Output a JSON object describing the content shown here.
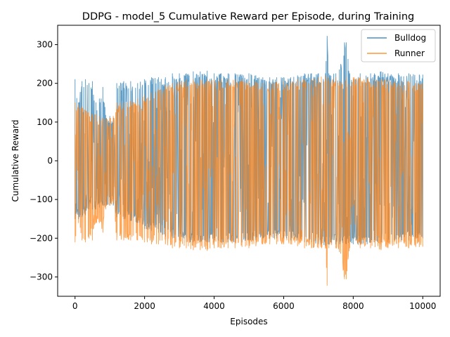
{
  "chart_data": {
    "type": "line",
    "title": "DDPG - model_5 Cumulative Reward per Episode, during Training",
    "xlabel": "Episodes",
    "ylabel": "Cumulative Reward",
    "xlim": [
      -500,
      10500
    ],
    "ylim": [
      -350,
      350
    ],
    "xticks": [
      0,
      2000,
      4000,
      6000,
      8000,
      10000
    ],
    "xtick_labels": [
      "0",
      "2000",
      "4000",
      "6000",
      "8000",
      "10000"
    ],
    "yticks": [
      -300,
      -200,
      -100,
      0,
      100,
      200,
      300
    ],
    "ytick_labels": [
      "−300",
      "−200",
      "−100",
      "0",
      "100",
      "200",
      "300"
    ],
    "grid": false,
    "legend_position": "top-right",
    "x_range": [
      0,
      10000
    ],
    "series": [
      {
        "name": "Bulldog",
        "color": "#1f77b4",
        "alpha": 0.7,
        "upper_envelope": [
          [
            0,
            210
          ],
          [
            100,
            150
          ],
          [
            200,
            205
          ],
          [
            300,
            210
          ],
          [
            400,
            200
          ],
          [
            500,
            205
          ],
          [
            600,
            150
          ],
          [
            700,
            160
          ],
          [
            800,
            190
          ],
          [
            900,
            110
          ],
          [
            1000,
            115
          ],
          [
            1100,
            110
          ],
          [
            1200,
            200
          ],
          [
            1400,
            205
          ],
          [
            1600,
            205
          ],
          [
            1800,
            200
          ],
          [
            2000,
            210
          ],
          [
            2200,
            215
          ],
          [
            2400,
            215
          ],
          [
            2600,
            215
          ],
          [
            2800,
            225
          ],
          [
            3000,
            225
          ],
          [
            3200,
            225
          ],
          [
            3400,
            230
          ],
          [
            3600,
            230
          ],
          [
            3800,
            232
          ],
          [
            4000,
            225
          ],
          [
            4200,
            225
          ],
          [
            4400,
            225
          ],
          [
            4600,
            225
          ],
          [
            4800,
            222
          ],
          [
            5000,
            225
          ],
          [
            5200,
            220
          ],
          [
            5400,
            215
          ],
          [
            5600,
            215
          ],
          [
            5800,
            215
          ],
          [
            6000,
            215
          ],
          [
            6200,
            215
          ],
          [
            6400,
            220
          ],
          [
            6600,
            225
          ],
          [
            6800,
            225
          ],
          [
            7000,
            225
          ],
          [
            7200,
            225
          ],
          [
            7250,
            322
          ],
          [
            7300,
            225
          ],
          [
            7500,
            225
          ],
          [
            7600,
            235
          ],
          [
            7750,
            305
          ],
          [
            7800,
            305
          ],
          [
            7900,
            225
          ],
          [
            8200,
            225
          ],
          [
            8500,
            225
          ],
          [
            8800,
            230
          ],
          [
            9000,
            225
          ],
          [
            9300,
            225
          ],
          [
            9600,
            225
          ],
          [
            9900,
            222
          ],
          [
            10000,
            222
          ]
        ],
        "lower_envelope": [
          [
            0,
            -150
          ],
          [
            100,
            -150
          ],
          [
            200,
            -145
          ],
          [
            300,
            -140
          ],
          [
            400,
            -125
          ],
          [
            500,
            -125
          ],
          [
            600,
            -125
          ],
          [
            700,
            -120
          ],
          [
            800,
            -115
          ],
          [
            900,
            -115
          ],
          [
            1000,
            -115
          ],
          [
            1100,
            -115
          ],
          [
            1200,
            -145
          ],
          [
            1400,
            -150
          ],
          [
            1600,
            -155
          ],
          [
            1800,
            -160
          ],
          [
            2000,
            -175
          ],
          [
            2200,
            -180
          ],
          [
            2400,
            -185
          ],
          [
            2600,
            -195
          ],
          [
            2800,
            -200
          ],
          [
            3000,
            -205
          ],
          [
            3200,
            -210
          ],
          [
            3400,
            -210
          ],
          [
            3600,
            -210
          ],
          [
            3800,
            -210
          ],
          [
            4000,
            -210
          ],
          [
            4200,
            -210
          ],
          [
            4400,
            -210
          ],
          [
            4600,
            -210
          ],
          [
            4800,
            -210
          ],
          [
            5000,
            -205
          ],
          [
            5200,
            -205
          ],
          [
            5400,
            -200
          ],
          [
            5600,
            -200
          ],
          [
            5800,
            -200
          ],
          [
            6000,
            -200
          ],
          [
            6200,
            -205
          ],
          [
            6400,
            -205
          ],
          [
            6600,
            -210
          ],
          [
            6800,
            -210
          ],
          [
            7000,
            -215
          ],
          [
            7200,
            -220
          ],
          [
            7500,
            -215
          ],
          [
            7800,
            -215
          ],
          [
            8000,
            -215
          ],
          [
            8200,
            -215
          ],
          [
            8400,
            -215
          ],
          [
            8600,
            -210
          ],
          [
            8800,
            -210
          ],
          [
            9000,
            -210
          ],
          [
            9200,
            -205
          ],
          [
            9400,
            -205
          ],
          [
            9600,
            -205
          ],
          [
            9800,
            -200
          ],
          [
            10000,
            -200
          ]
        ]
      },
      {
        "name": "Runner",
        "color": "#ff7f0e",
        "alpha": 0.7,
        "upper_envelope": [
          [
            0,
            150
          ],
          [
            100,
            145
          ],
          [
            200,
            140
          ],
          [
            300,
            130
          ],
          [
            400,
            125
          ],
          [
            500,
            120
          ],
          [
            600,
            120
          ],
          [
            700,
            115
          ],
          [
            800,
            110
          ],
          [
            900,
            110
          ],
          [
            1000,
            110
          ],
          [
            1100,
            115
          ],
          [
            1200,
            150
          ],
          [
            1400,
            150
          ],
          [
            1600,
            155
          ],
          [
            1800,
            160
          ],
          [
            2000,
            170
          ],
          [
            2200,
            175
          ],
          [
            2400,
            185
          ],
          [
            2600,
            195
          ],
          [
            2800,
            200
          ],
          [
            3000,
            205
          ],
          [
            3200,
            210
          ],
          [
            3400,
            210
          ],
          [
            3600,
            210
          ],
          [
            3800,
            210
          ],
          [
            4000,
            210
          ],
          [
            4200,
            210
          ],
          [
            4400,
            210
          ],
          [
            4600,
            210
          ],
          [
            4800,
            210
          ],
          [
            5000,
            205
          ],
          [
            5200,
            205
          ],
          [
            5400,
            200
          ],
          [
            5600,
            200
          ],
          [
            5800,
            205
          ],
          [
            6000,
            205
          ],
          [
            6200,
            205
          ],
          [
            6400,
            210
          ],
          [
            6600,
            210
          ],
          [
            6800,
            210
          ],
          [
            7000,
            215
          ],
          [
            7200,
            220
          ],
          [
            7500,
            215
          ],
          [
            7800,
            215
          ],
          [
            8000,
            215
          ],
          [
            8200,
            215
          ],
          [
            8400,
            215
          ],
          [
            8600,
            210
          ],
          [
            8800,
            210
          ],
          [
            9000,
            210
          ],
          [
            9200,
            205
          ],
          [
            9400,
            205
          ],
          [
            9600,
            205
          ],
          [
            9800,
            200
          ],
          [
            10000,
            200
          ]
        ],
        "lower_envelope": [
          [
            0,
            -210
          ],
          [
            100,
            -160
          ],
          [
            200,
            -205
          ],
          [
            300,
            -210
          ],
          [
            400,
            -200
          ],
          [
            500,
            -205
          ],
          [
            600,
            -160
          ],
          [
            700,
            -160
          ],
          [
            800,
            -185
          ],
          [
            900,
            -115
          ],
          [
            1000,
            -115
          ],
          [
            1100,
            -110
          ],
          [
            1200,
            -205
          ],
          [
            1400,
            -205
          ],
          [
            1600,
            -205
          ],
          [
            1800,
            -205
          ],
          [
            2000,
            -210
          ],
          [
            2200,
            -215
          ],
          [
            2400,
            -215
          ],
          [
            2600,
            -215
          ],
          [
            2800,
            -225
          ],
          [
            3000,
            -225
          ],
          [
            3200,
            -225
          ],
          [
            3400,
            -230
          ],
          [
            3600,
            -230
          ],
          [
            3800,
            -232
          ],
          [
            4000,
            -225
          ],
          [
            4200,
            -225
          ],
          [
            4400,
            -225
          ],
          [
            4600,
            -225
          ],
          [
            4800,
            -222
          ],
          [
            5000,
            -225
          ],
          [
            5200,
            -220
          ],
          [
            5400,
            -215
          ],
          [
            5600,
            -215
          ],
          [
            5800,
            -215
          ],
          [
            6000,
            -215
          ],
          [
            6200,
            -215
          ],
          [
            6400,
            -220
          ],
          [
            6600,
            -225
          ],
          [
            6800,
            -225
          ],
          [
            7000,
            -225
          ],
          [
            7200,
            -225
          ],
          [
            7250,
            -322
          ],
          [
            7300,
            -225
          ],
          [
            7500,
            -225
          ],
          [
            7600,
            -235
          ],
          [
            7750,
            -305
          ],
          [
            7800,
            -305
          ],
          [
            7900,
            -225
          ],
          [
            8200,
            -225
          ],
          [
            8500,
            -225
          ],
          [
            8800,
            -230
          ],
          [
            9000,
            -225
          ],
          [
            9300,
            -225
          ],
          [
            9600,
            -225
          ],
          [
            9900,
            -222
          ],
          [
            10000,
            -222
          ]
        ]
      }
    ]
  }
}
